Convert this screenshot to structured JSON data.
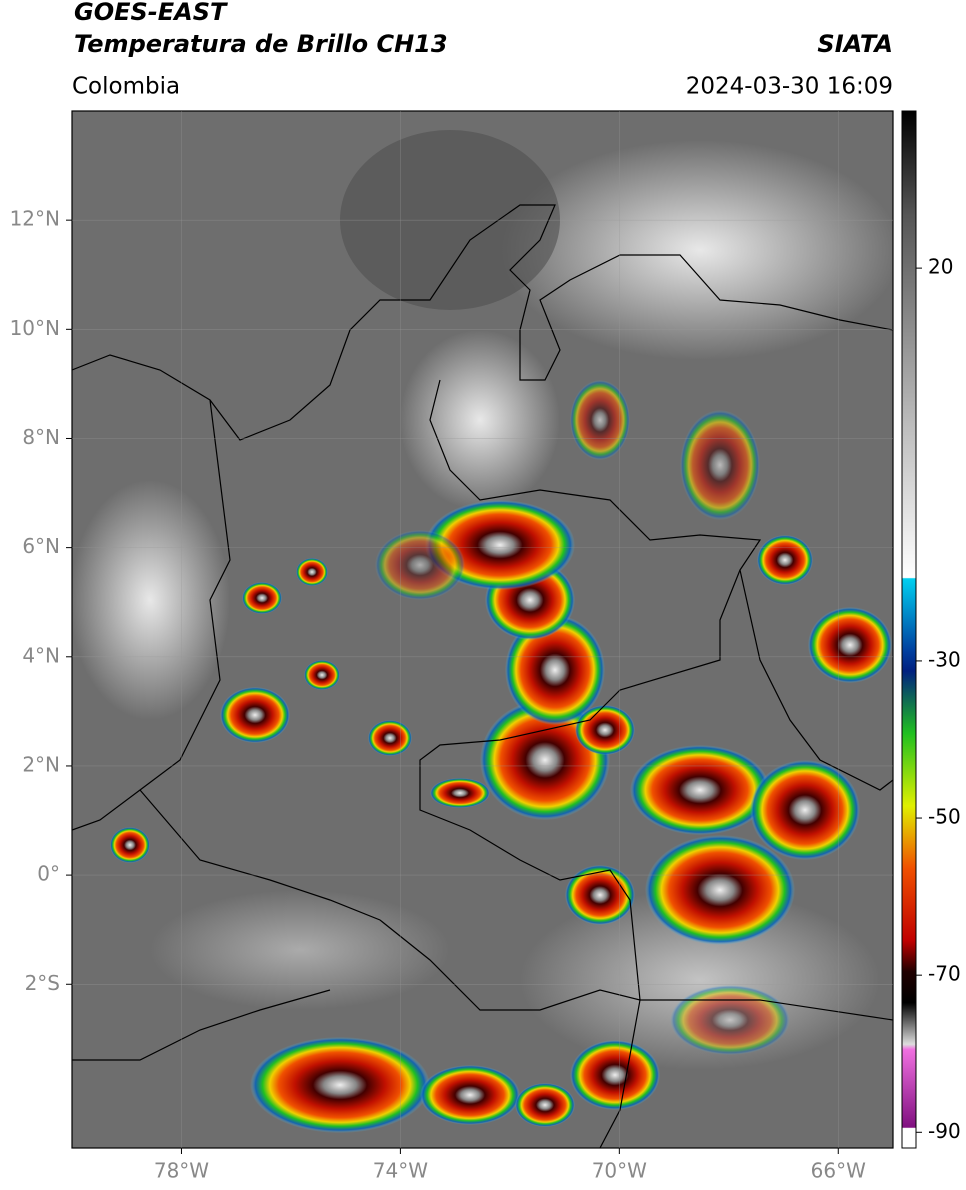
{
  "header": {
    "satellite": "GOES-EAST",
    "title": "Temperatura de Brillo CH13",
    "source": "SIATA",
    "region": "Colombia",
    "datetime": "2024-03-30 16:09"
  },
  "map": {
    "xlim": [
      -80,
      -65
    ],
    "ylim": [
      -5,
      14
    ],
    "xticks": [
      {
        "value": -78,
        "label": "78°W"
      },
      {
        "value": -74,
        "label": "74°W"
      },
      {
        "value": -70,
        "label": "70°W"
      },
      {
        "value": -66,
        "label": "66°W"
      }
    ],
    "yticks": [
      {
        "value": 12,
        "label": "12°N"
      },
      {
        "value": 10,
        "label": "10°N"
      },
      {
        "value": 8,
        "label": "8°N"
      },
      {
        "value": 6,
        "label": "6°N"
      },
      {
        "value": 4,
        "label": "4°N"
      },
      {
        "value": 2,
        "label": "2°N"
      },
      {
        "value": 0,
        "label": "0°"
      },
      {
        "value": -2,
        "label": "2°S"
      }
    ],
    "grid": true
  },
  "colorbar": {
    "lim": [
      -92,
      40
    ],
    "ticks": [
      20,
      -30,
      -50,
      -70,
      -90
    ]
  }
}
